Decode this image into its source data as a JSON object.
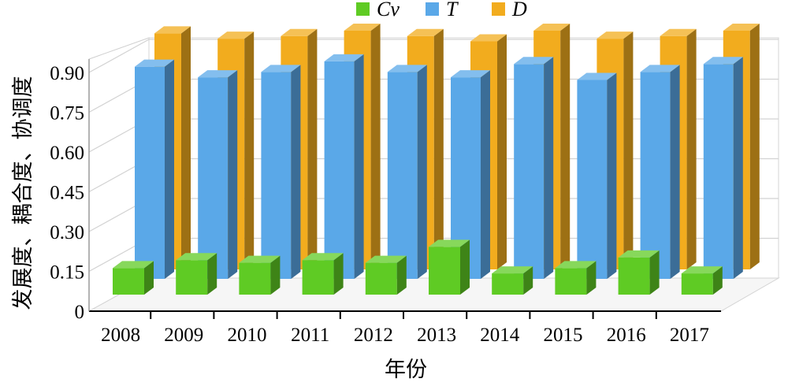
{
  "chart_data": {
    "type": "bar",
    "categories": [
      "2008",
      "2009",
      "2010",
      "2011",
      "2012",
      "2013",
      "2014",
      "2015",
      "2016",
      "2017"
    ],
    "series": [
      {
        "name": "Cv",
        "color": "#5FCB24",
        "values": [
          0.1,
          0.13,
          0.12,
          0.13,
          0.12,
          0.18,
          0.08,
          0.1,
          0.14,
          0.08
        ]
      },
      {
        "name": "T",
        "color": "#5AA8E8",
        "values": [
          0.8,
          0.76,
          0.78,
          0.82,
          0.78,
          0.76,
          0.81,
          0.75,
          0.78,
          0.81
        ]
      },
      {
        "name": "D",
        "color": "#F2AC1E",
        "values": [
          0.89,
          0.87,
          0.88,
          0.9,
          0.88,
          0.86,
          0.9,
          0.87,
          0.88,
          0.9
        ]
      }
    ],
    "y_ticks": [
      "0",
      "0.15",
      "0.30",
      "0.45",
      "0.60",
      "0.75",
      "0.90"
    ],
    "ylim": [
      0,
      0.9
    ],
    "xlabel": "年份",
    "ylabel": "发展度、耦合度、协调度",
    "legend_position": "top",
    "grid": true
  }
}
